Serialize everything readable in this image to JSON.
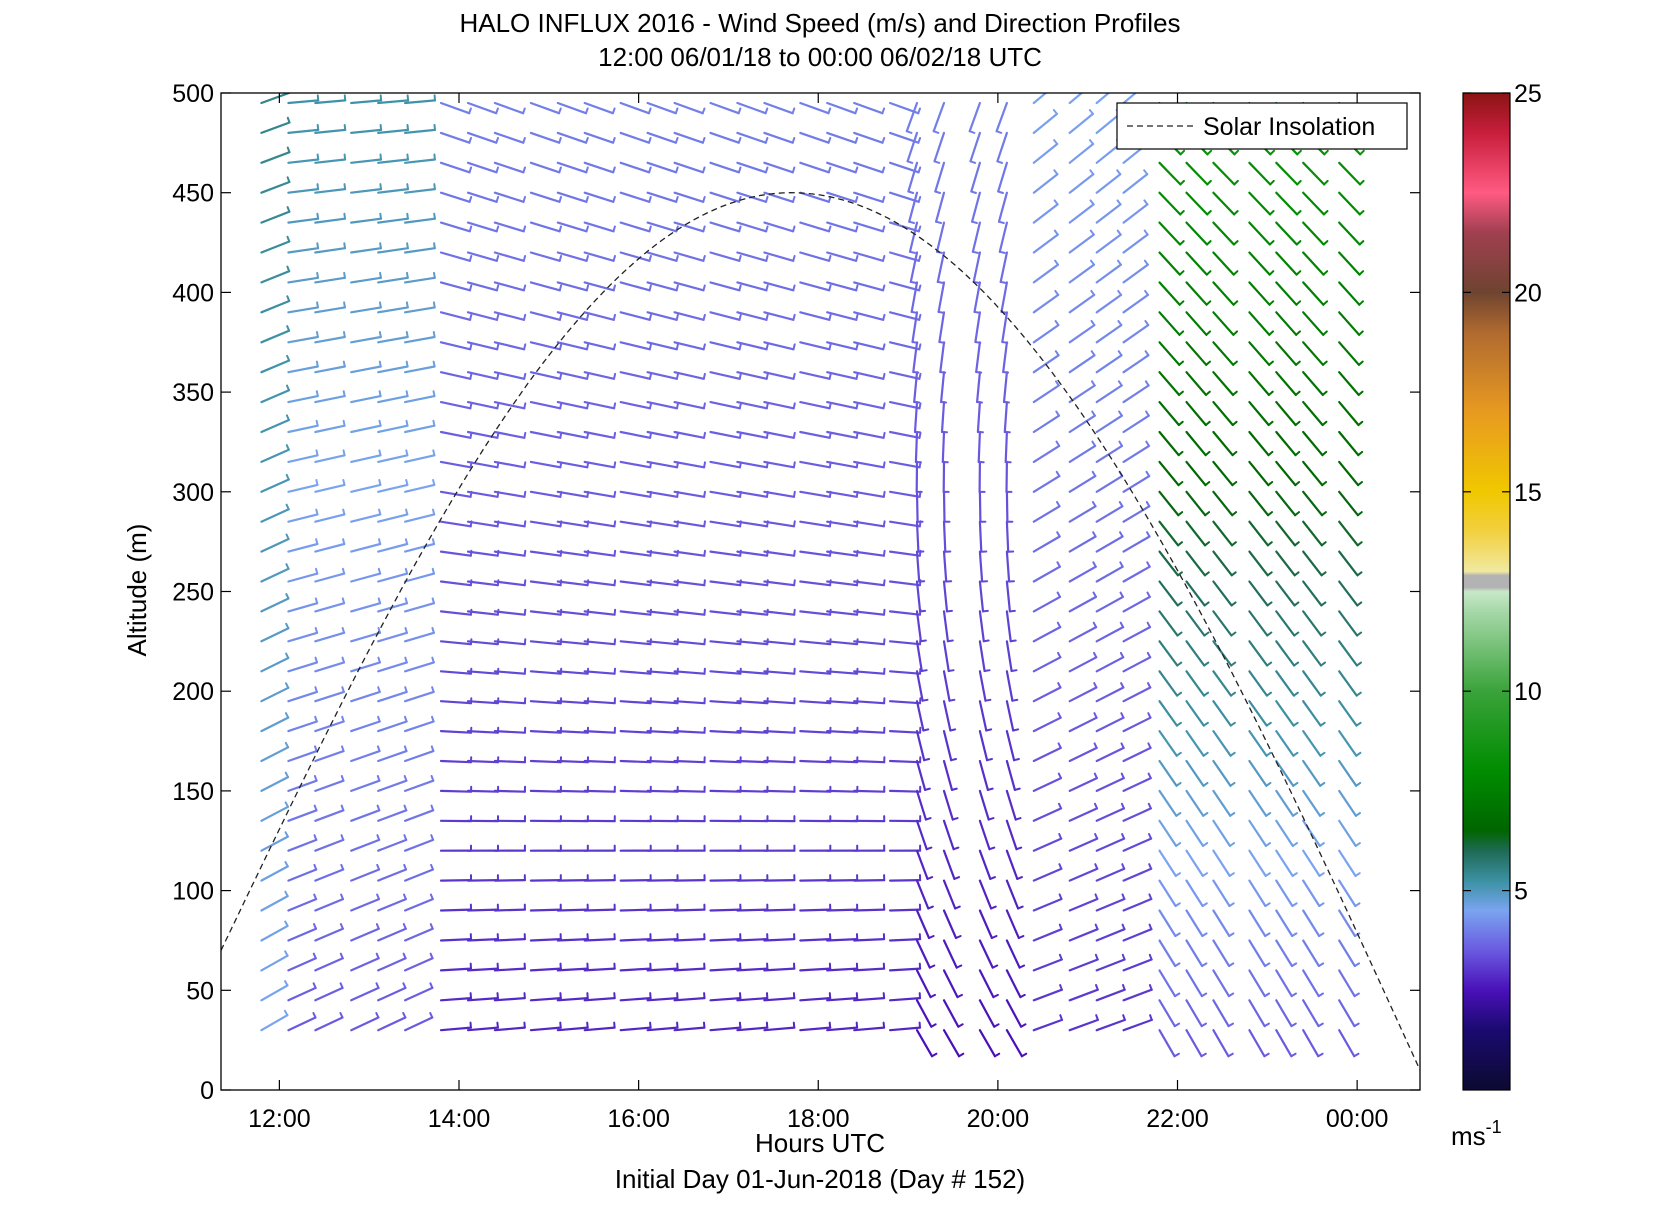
{
  "chart_data": {
    "type": "wind-barb-profile",
    "title": "HALO INFLUX 2016 - Wind Speed (m/s) and Direction Profiles",
    "subtitle": "12:00 06/01/18 to 00:00 06/02/18  UTC",
    "xlabel": "Hours UTC",
    "footer": "Initial Day 01-Jun-2018 (Day # 152)",
    "ylabel": "Altitude (m)",
    "xlim": [
      11.35,
      24.7
    ],
    "ylim": [
      0,
      500
    ],
    "x_ticks": [
      {
        "value": 12,
        "label": "12:00"
      },
      {
        "value": 14,
        "label": "14:00"
      },
      {
        "value": 16,
        "label": "16:00"
      },
      {
        "value": 18,
        "label": "18:00"
      },
      {
        "value": 20,
        "label": "20:00"
      },
      {
        "value": 22,
        "label": "22:00"
      },
      {
        "value": 24,
        "label": "00:00"
      }
    ],
    "y_ticks": [
      {
        "value": 0,
        "label": "0"
      },
      {
        "value": 50,
        "label": "50"
      },
      {
        "value": 100,
        "label": "100"
      },
      {
        "value": 150,
        "label": "150"
      },
      {
        "value": 200,
        "label": "200"
      },
      {
        "value": 250,
        "label": "250"
      },
      {
        "value": 300,
        "label": "300"
      },
      {
        "value": 350,
        "label": "350"
      },
      {
        "value": 400,
        "label": "400"
      },
      {
        "value": 450,
        "label": "450"
      },
      {
        "value": 500,
        "label": "500"
      }
    ],
    "legend": {
      "label": "Solar Insolation",
      "location": "top-right",
      "line_style": "dashed",
      "color": "#000000"
    },
    "solar_insolation": {
      "start_hour": 11.35,
      "peak_hour": 17.7,
      "end_hour": 24.7,
      "start_altitude": 70,
      "peak_altitude": 450,
      "end_altitude": 10
    },
    "colorbar": {
      "label": "ms",
      "label_superscript": "-1",
      "range": [
        0,
        25
      ],
      "ticks": [
        {
          "value": 5,
          "label": "5"
        },
        {
          "value": 10,
          "label": "10"
        },
        {
          "value": 15,
          "label": "15"
        },
        {
          "value": 20,
          "label": "20"
        },
        {
          "value": 25,
          "label": "25"
        }
      ],
      "stops": [
        {
          "value": 0,
          "color": "#0b0a30"
        },
        {
          "value": 1.5,
          "color": "#1a0a70"
        },
        {
          "value": 2.5,
          "color": "#4a10b8"
        },
        {
          "value": 3.5,
          "color": "#6a5ae0"
        },
        {
          "value": 4.5,
          "color": "#7aa4f0"
        },
        {
          "value": 5.2,
          "color": "#3f93a8"
        },
        {
          "value": 6,
          "color": "#1f6a55"
        },
        {
          "value": 6.5,
          "color": "#006600"
        },
        {
          "value": 8,
          "color": "#008c00"
        },
        {
          "value": 10,
          "color": "#3aa33a"
        },
        {
          "value": 12,
          "color": "#a6d8a8"
        },
        {
          "value": 12.5,
          "color": "#c8e8c8"
        },
        {
          "value": 12.6,
          "color": "#b3b3b3"
        },
        {
          "value": 12.9,
          "color": "#b3b3b3"
        },
        {
          "value": 13,
          "color": "#f0e9a0"
        },
        {
          "value": 14,
          "color": "#f2d040"
        },
        {
          "value": 15,
          "color": "#f0c800"
        },
        {
          "value": 17,
          "color": "#e89a20"
        },
        {
          "value": 19,
          "color": "#b06a30"
        },
        {
          "value": 20,
          "color": "#6e4430"
        },
        {
          "value": 21.5,
          "color": "#a04050"
        },
        {
          "value": 22.5,
          "color": "#ff5a82"
        },
        {
          "value": 24,
          "color": "#c81e3c"
        },
        {
          "value": 25,
          "color": "#8a1414"
        }
      ]
    },
    "altitudes": [
      30,
      45,
      60,
      75,
      90,
      105,
      120,
      135,
      150,
      165,
      180,
      195,
      210,
      225,
      240,
      255,
      270,
      285,
      300,
      315,
      330,
      345,
      360,
      375,
      390,
      405,
      420,
      435,
      450,
      465,
      480,
      495
    ],
    "profile_times": [
      11.8,
      12.1,
      12.4,
      12.8,
      13.1,
      13.4,
      13.8,
      14.1,
      14.4,
      14.8,
      15.1,
      15.4,
      15.8,
      16.1,
      16.4,
      16.8,
      17.1,
      17.4,
      17.8,
      18.1,
      18.4,
      18.8,
      19.1,
      19.4,
      19.8,
      20.1,
      20.4,
      20.8,
      21.1,
      21.4,
      21.8,
      22.1,
      22.4,
      22.8,
      23.1,
      23.4,
      23.8
    ],
    "regimes": [
      {
        "from_hour": 11.8,
        "to_hour": 12.1,
        "direction_deg_low": 240,
        "direction_deg_high": 250,
        "speed_low": 4.5,
        "speed_high": 5.5
      },
      {
        "from_hour": 12.1,
        "to_hour": 13.5,
        "direction_deg_low": 245,
        "direction_deg_high": 265,
        "speed_low": 3.5,
        "speed_high": 5.2
      },
      {
        "from_hour": 13.5,
        "to_hour": 19.0,
        "direction_deg_low": 265,
        "direction_deg_high": 290,
        "speed_low": 2.8,
        "speed_high": 4.0
      },
      {
        "from_hour": 19.0,
        "to_hour": 20.4,
        "direction_deg_low": 330,
        "direction_deg_high": 20,
        "speed_low": 2.5,
        "speed_high": 4.0
      },
      {
        "from_hour": 20.4,
        "to_hour": 21.5,
        "direction_deg_low": 250,
        "direction_deg_high": 230,
        "speed_low": 3.0,
        "speed_high": 4.5
      },
      {
        "from_hour": 21.5,
        "to_hour": 24.0,
        "direction_deg_low": 330,
        "direction_deg_high": 315,
        "speed_low": 3.5,
        "speed_high": 8.5
      }
    ]
  }
}
